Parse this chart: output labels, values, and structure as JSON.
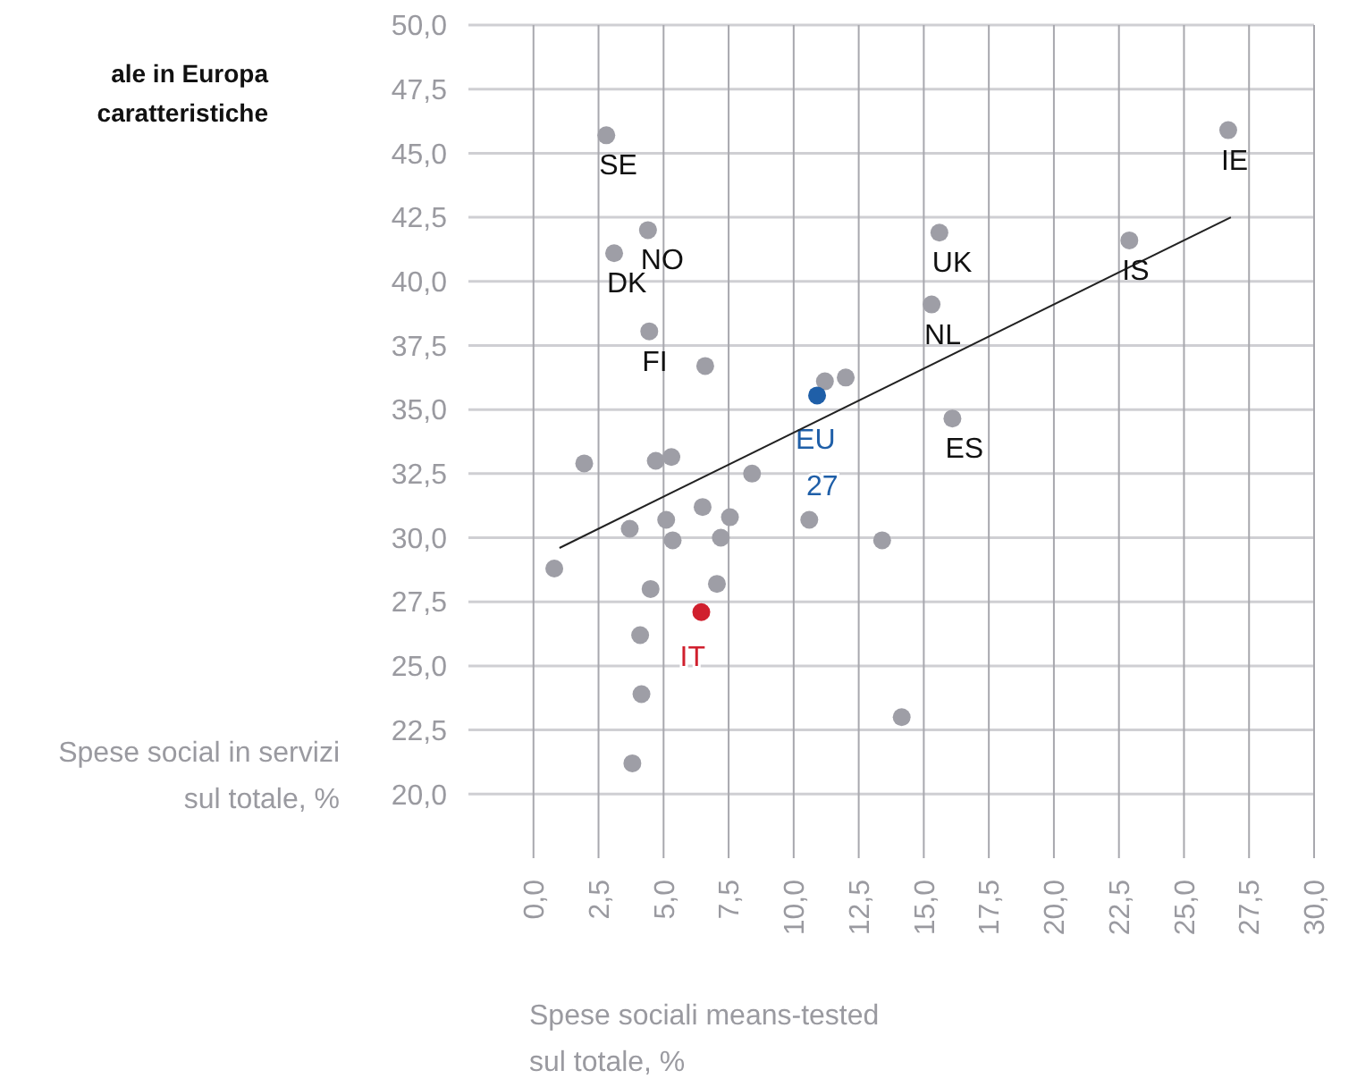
{
  "chart_data": {
    "type": "scatter",
    "title": "ale in Europa\ncaratteristiche",
    "xlabel": "Spese sociali means-tested\nsul totale, %",
    "ylabel": "Spese social in servizi\nsul totale, %",
    "xlim": [
      -2.5,
      30
    ],
    "ylim": [
      17.5,
      50
    ],
    "xticks": [
      {
        "value": 0,
        "label": "0,0"
      },
      {
        "value": 2.5,
        "label": "2,5"
      },
      {
        "value": 5,
        "label": "5,0"
      },
      {
        "value": 7.5,
        "label": "7,5"
      },
      {
        "value": 10,
        "label": "10,0"
      },
      {
        "value": 12.5,
        "label": "12,5"
      },
      {
        "value": 15,
        "label": "15,0"
      },
      {
        "value": 17.5,
        "label": "17,5"
      },
      {
        "value": 20,
        "label": "20,0"
      },
      {
        "value": 22.5,
        "label": "22,5"
      },
      {
        "value": 25,
        "label": "25,0"
      },
      {
        "value": 27.5,
        "label": "27,5"
      },
      {
        "value": 30,
        "label": "30,0"
      }
    ],
    "yticks": [
      {
        "value": 20,
        "label": "20,0"
      },
      {
        "value": 22.5,
        "label": "22,5"
      },
      {
        "value": 25,
        "label": "25,0"
      },
      {
        "value": 27.5,
        "label": "27,5"
      },
      {
        "value": 30,
        "label": "30,0"
      },
      {
        "value": 32.5,
        "label": "32,5"
      },
      {
        "value": 35,
        "label": "35,0"
      },
      {
        "value": 37.5,
        "label": "37,5"
      },
      {
        "value": 40,
        "label": "40,0"
      },
      {
        "value": 42.5,
        "label": "42,5"
      },
      {
        "value": 45,
        "label": "45,0"
      },
      {
        "value": 47.5,
        "label": "47,5"
      },
      {
        "value": 50,
        "label": "50,0"
      }
    ],
    "grid": true,
    "marker": "circle",
    "series": [
      {
        "color": "#9e9ea6",
        "x": [
          2.8,
          4.4,
          3.1,
          4.45,
          15.6,
          15.3,
          22.9,
          26.7,
          16.1,
          11.2,
          12.0,
          6.6,
          1.95,
          4.7,
          5.3,
          8.4,
          3.7,
          5.1,
          6.5,
          7.55,
          5.35,
          7.2,
          10.6,
          13.4,
          0.8,
          4.5,
          7.05,
          4.1,
          4.15,
          14.15,
          3.8
        ],
        "values": [
          45.7,
          42.0,
          41.1,
          38.05,
          41.9,
          39.1,
          41.6,
          45.9,
          34.65,
          36.1,
          36.25,
          36.7,
          32.9,
          33.0,
          33.15,
          32.5,
          30.35,
          30.7,
          31.2,
          30.8,
          29.9,
          30.0,
          30.7,
          29.9,
          28.8,
          28.0,
          28.2,
          26.2,
          23.9,
          23.0,
          21.2
        ]
      },
      {
        "name": "EU 27",
        "color": "#1f5fa8",
        "x": [
          10.9
        ],
        "values": [
          35.55
        ]
      },
      {
        "name": "IT",
        "color": "#d0202e",
        "x": [
          6.45
        ],
        "values": [
          27.1
        ]
      },
      {
        "type": "line",
        "color": "#222222",
        "marker": "none",
        "x": [
          1.0,
          26.8
        ],
        "values": [
          29.6,
          42.5
        ]
      }
    ],
    "annotations": [
      {
        "text": "SE",
        "x": 2.8,
        "y": 45.7
      },
      {
        "text": "NO",
        "x": 4.4,
        "y": 42.0
      },
      {
        "text": "DK",
        "x": 3.1,
        "y": 41.1
      },
      {
        "text": "FI",
        "x": 4.45,
        "y": 38.05
      },
      {
        "text": "UK",
        "x": 15.6,
        "y": 41.9
      },
      {
        "text": "NL",
        "x": 15.3,
        "y": 39.1
      },
      {
        "text": "IS",
        "x": 22.9,
        "y": 41.6
      },
      {
        "text": "IE",
        "x": 26.7,
        "y": 45.9
      },
      {
        "text": "ES",
        "x": 16.1,
        "y": 34.65
      }
    ]
  }
}
